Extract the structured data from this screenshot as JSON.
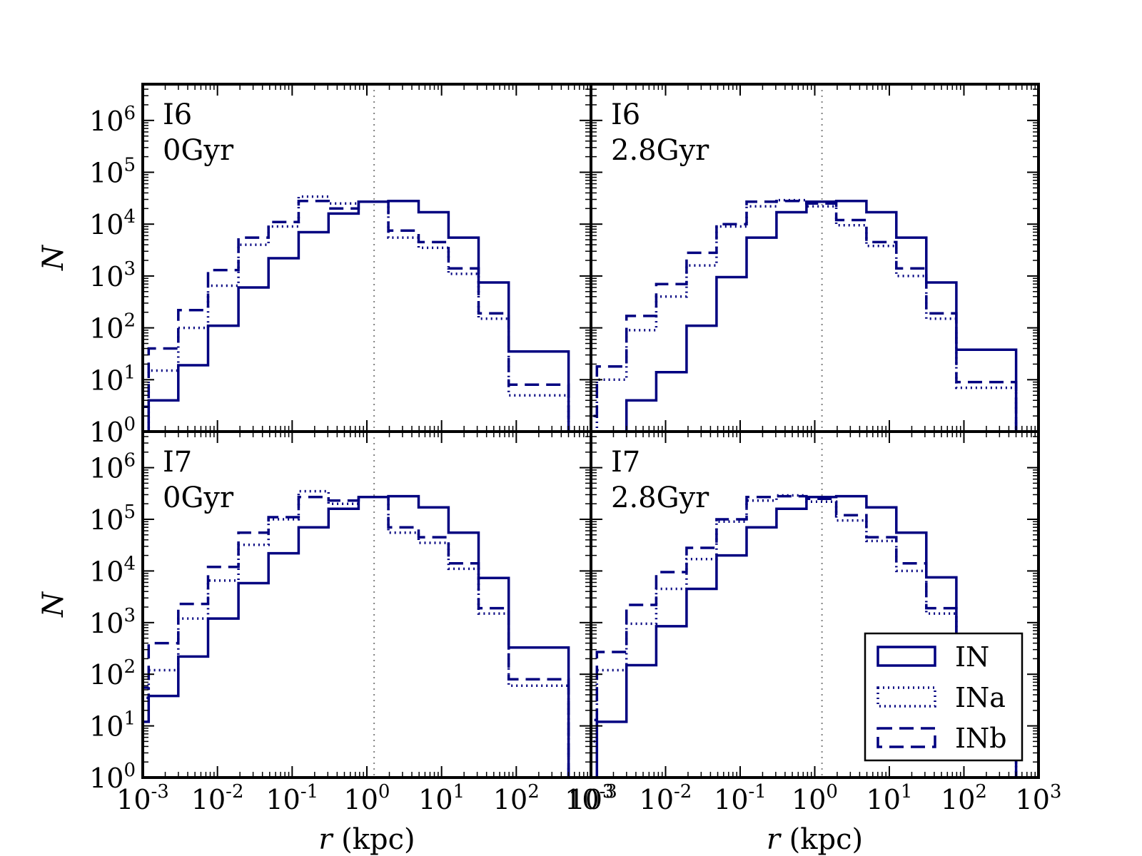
{
  "colors": {
    "line": "#000080",
    "axis": "#000000",
    "vline": "#808080",
    "background": "#ffffff"
  },
  "chart_data": {
    "type": "line",
    "xscale": "log",
    "yscale": "log",
    "xlim": [
      0.001,
      1000
    ],
    "ylim": [
      1,
      5000000
    ],
    "xlabel_var": "r",
    "xlabel_unit": "(kpc)",
    "ylabel": "N",
    "vline_x": 1.25,
    "x_tick_base": "10",
    "x_tick_exps": [
      "-3",
      "-2",
      "-1",
      "0",
      "1",
      "2",
      "3"
    ],
    "y_tick_base": "10",
    "y_tick_exps": [
      "0",
      "1",
      "2",
      "3",
      "4",
      "5",
      "6"
    ],
    "bin_edges": [
      0.000464,
      0.0012,
      0.00299,
      0.00749,
      0.0191,
      0.0482,
      0.122,
      0.307,
      0.775,
      1.94,
      4.93,
      12.4,
      31.3,
      79.1,
      199,
      501,
      1264
    ],
    "legend": {
      "position": "lower-right",
      "entries": [
        "IN",
        "INa",
        "INb"
      ],
      "styles": [
        "solid",
        "dotted",
        "dashed"
      ]
    },
    "panels": [
      {
        "name": "I6 0Gyr",
        "label_line1": "I6",
        "label_line2": "0Gyr",
        "series": [
          {
            "name": "IN",
            "style": "solid",
            "values": [
              null,
              4,
              19,
              110,
              600,
              2200,
              7000,
              16000,
              27000,
              28000,
              17000,
              5500,
              750,
              35,
              35,
              null
            ]
          },
          {
            "name": "INa",
            "style": "dotted",
            "values": [
              null,
              15,
              100,
              650,
              4000,
              9000,
              34000,
              25000,
              27000,
              5500,
              3500,
              1100,
              150,
              5,
              5,
              null
            ]
          },
          {
            "name": "INb",
            "style": "dashed",
            "values": [
              3,
              40,
              220,
              1300,
              5500,
              11000,
              28000,
              20000,
              27000,
              7500,
              4500,
              1400,
              190,
              8,
              8,
              null
            ]
          }
        ]
      },
      {
        "name": "I6 2.8Gyr",
        "label_line1": "I6",
        "label_line2": "2.8Gyr",
        "series": [
          {
            "name": "IN",
            "style": "solid",
            "values": [
              null,
              null,
              4,
              14,
              110,
              950,
              5500,
              17000,
              27000,
              28000,
              17000,
              5500,
              750,
              38,
              38,
              null
            ]
          },
          {
            "name": "INa",
            "style": "dotted",
            "values": [
              null,
              10,
              90,
              400,
              1600,
              9000,
              22000,
              29000,
              22000,
              9500,
              3800,
              1000,
              150,
              7,
              7,
              null
            ]
          },
          {
            "name": "INb",
            "style": "dashed",
            "values": [
              2,
              18,
              170,
              700,
              2800,
              10000,
              27000,
              28000,
              25000,
              12000,
              4500,
              1400,
              190,
              9,
              9,
              null
            ]
          }
        ]
      },
      {
        "name": "I7 0Gyr",
        "label_line1": "I7",
        "label_line2": "0Gyr",
        "series": [
          {
            "name": "IN",
            "style": "solid",
            "values": [
              12,
              38,
              220,
              1200,
              5800,
              22000,
              70000,
              160000,
              270000,
              280000,
              170000,
              55000,
              7300,
              330,
              330,
              null
            ]
          },
          {
            "name": "INa",
            "style": "dotted",
            "values": [
              35,
              120,
              1200,
              6500,
              32000,
              100000,
              350000,
              200000,
              270000,
              55000,
              35000,
              11000,
              1500,
              60,
              60,
              null
            ]
          },
          {
            "name": "INb",
            "style": "dashed",
            "values": [
              55,
              400,
              2300,
              12000,
              55000,
              110000,
              270000,
              230000,
              270000,
              70000,
              45000,
              14000,
              1900,
              80,
              80,
              null
            ]
          }
        ]
      },
      {
        "name": "I7 2.8Gyr",
        "label_line1": "I7",
        "label_line2": "2.8Gyr",
        "series": [
          {
            "name": "IN",
            "style": "solid",
            "values": [
              null,
              12,
              150,
              850,
              4500,
              20000,
              70000,
              160000,
              270000,
              280000,
              170000,
              55000,
              7500,
              350,
              350,
              null
            ]
          },
          {
            "name": "INa",
            "style": "dotted",
            "values": [
              5,
              120,
              950,
              4500,
              17000,
              90000,
              230000,
              290000,
              220000,
              95000,
              38000,
              10000,
              1500,
              100,
              100,
              null
            ]
          },
          {
            "name": "INb",
            "style": "dashed",
            "values": [
              13,
              270,
              2200,
              9500,
              28000,
              100000,
              270000,
              280000,
              250000,
              120000,
              45000,
              14000,
              1900,
              110,
              110,
              null
            ]
          }
        ]
      }
    ]
  }
}
